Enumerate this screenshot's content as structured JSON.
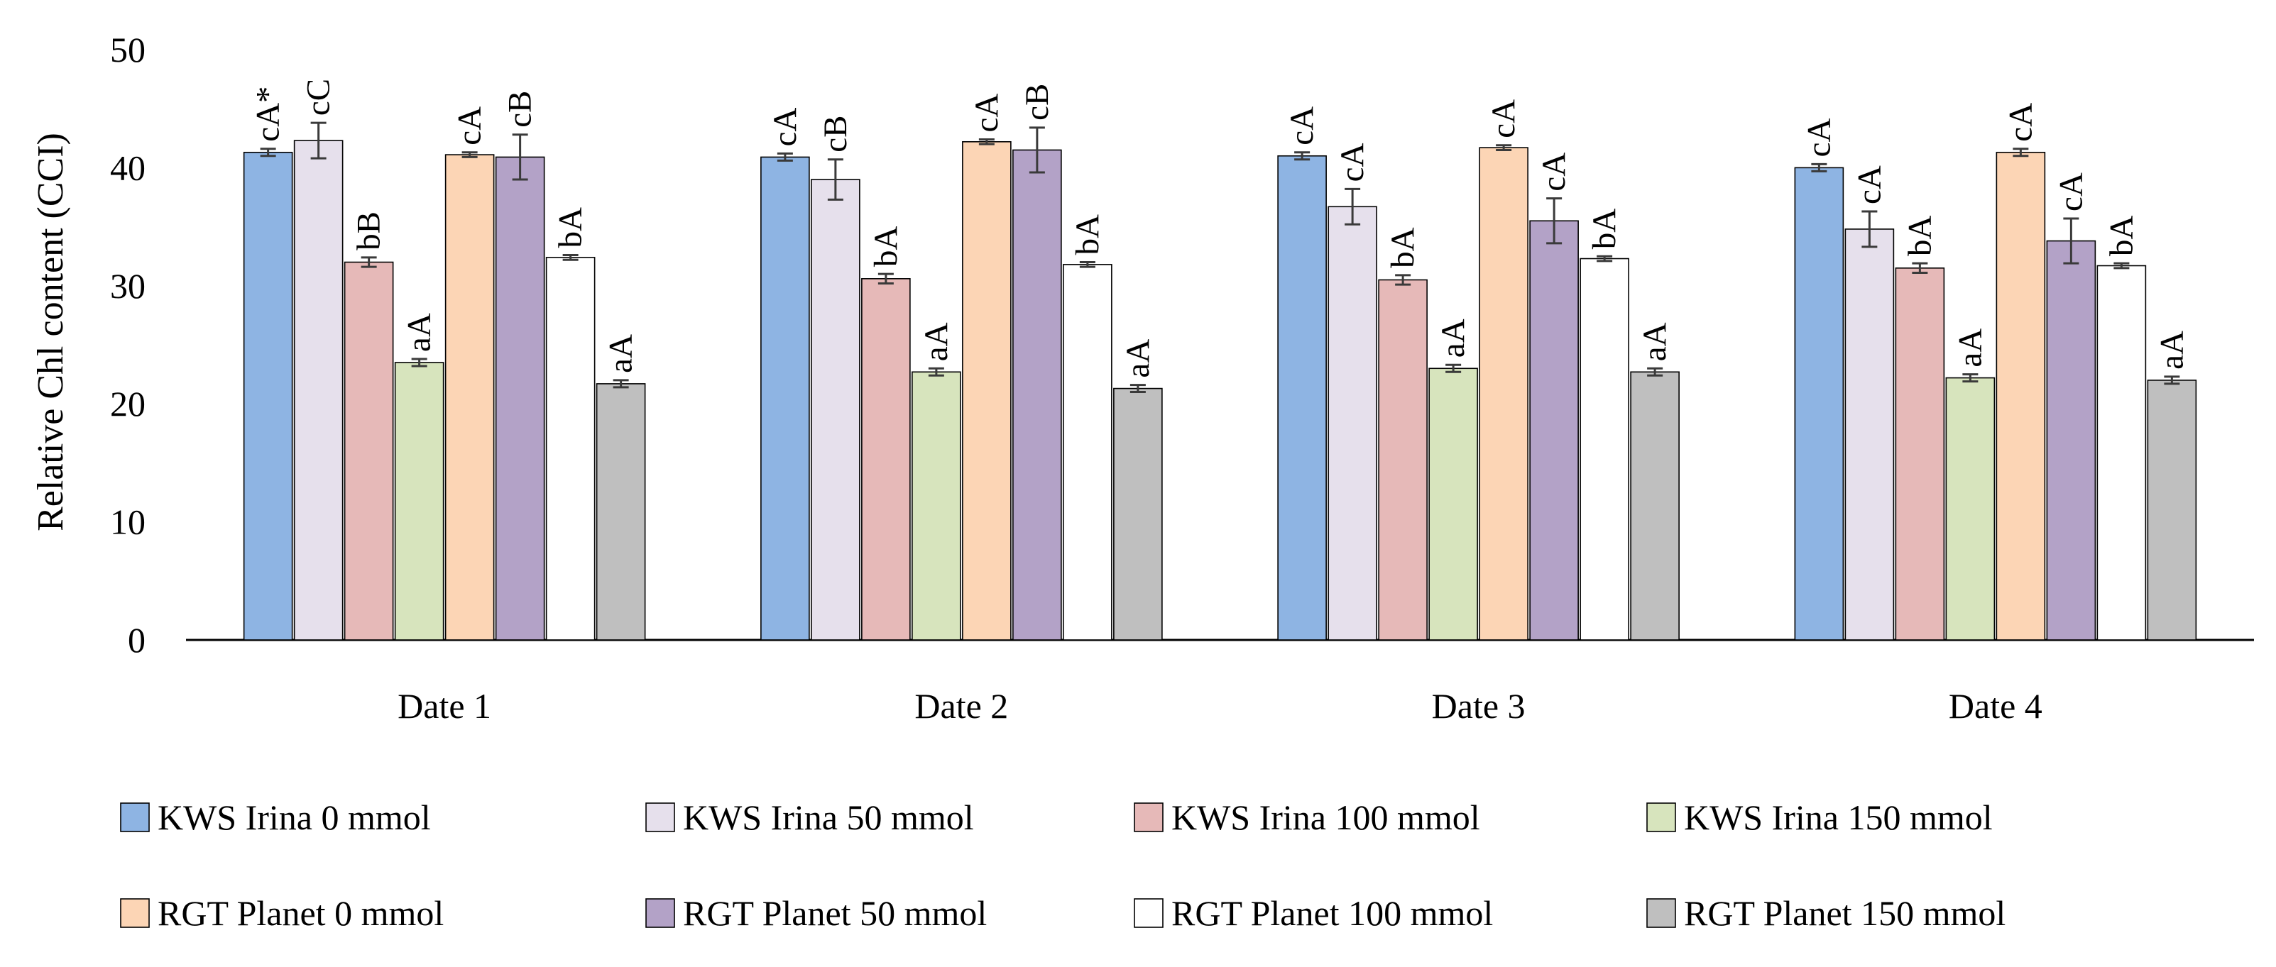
{
  "chart_data": {
    "type": "bar",
    "title": "",
    "xlabel": "",
    "ylabel": "Relative Chl content (CCI)",
    "ylim": [
      0,
      50
    ],
    "yticks": [
      0,
      10,
      20,
      30,
      40,
      50
    ],
    "grid": false,
    "legend_position": "bottom",
    "categories": [
      "Date 1",
      "Date 2",
      "Date 3",
      "Date 4"
    ],
    "series": [
      {
        "name": "KWS Irina 0 mmol",
        "color": "#8EB4E3",
        "values": [
          41.3,
          40.9,
          41.0,
          40.0
        ],
        "errors": [
          0.3,
          0.3,
          0.3,
          0.3
        ],
        "labels": [
          "cA*",
          "cA",
          "cA",
          "cA"
        ]
      },
      {
        "name": "KWS Irina 50 mmol",
        "color": "#E6E0EC",
        "values": [
          42.3,
          39.0,
          36.7,
          34.8
        ],
        "errors": [
          1.5,
          1.7,
          1.5,
          1.5
        ],
        "labels": [
          "cC",
          "cB",
          "cA",
          "cA"
        ]
      },
      {
        "name": "KWS Irina 100 mmol",
        "color": "#E6B9B8",
        "values": [
          32.0,
          30.6,
          30.5,
          31.5
        ],
        "errors": [
          0.4,
          0.4,
          0.4,
          0.4
        ],
        "labels": [
          "bB",
          "bA",
          "bA",
          "bA"
        ]
      },
      {
        "name": "KWS Irina 150 mmol",
        "color": "#D7E4BD",
        "values": [
          23.5,
          22.7,
          23.0,
          22.2
        ],
        "errors": [
          0.3,
          0.3,
          0.3,
          0.3
        ],
        "labels": [
          "aA",
          "aA",
          "aA",
          "aA"
        ]
      },
      {
        "name": "RGT Planet 0 mmol",
        "color": "#FCD5B5",
        "values": [
          41.1,
          42.2,
          41.7,
          41.3
        ],
        "errors": [
          0.2,
          0.2,
          0.2,
          0.3
        ],
        "labels": [
          "cA",
          "cA",
          "cA",
          "cA"
        ]
      },
      {
        "name": "RGT Planet 50 mmol",
        "color": "#B3A2C7",
        "values": [
          40.9,
          41.5,
          35.5,
          33.8
        ],
        "errors": [
          1.9,
          1.9,
          1.9,
          1.9
        ],
        "labels": [
          "cB",
          "cB",
          "cA",
          "cA"
        ]
      },
      {
        "name": "RGT Planet 100 mmol",
        "color": "#FFFFFF",
        "values": [
          32.4,
          31.8,
          32.3,
          31.7
        ],
        "errors": [
          0.2,
          0.2,
          0.2,
          0.2
        ],
        "labels": [
          "bA",
          "bA",
          "bA",
          "bA"
        ]
      },
      {
        "name": "RGT Planet 150 mmol",
        "color": "#BFBFBF",
        "values": [
          21.7,
          21.3,
          22.7,
          22.0
        ],
        "errors": [
          0.3,
          0.3,
          0.3,
          0.3
        ],
        "labels": [
          "aA",
          "aA",
          "aA",
          "aA"
        ]
      }
    ]
  }
}
